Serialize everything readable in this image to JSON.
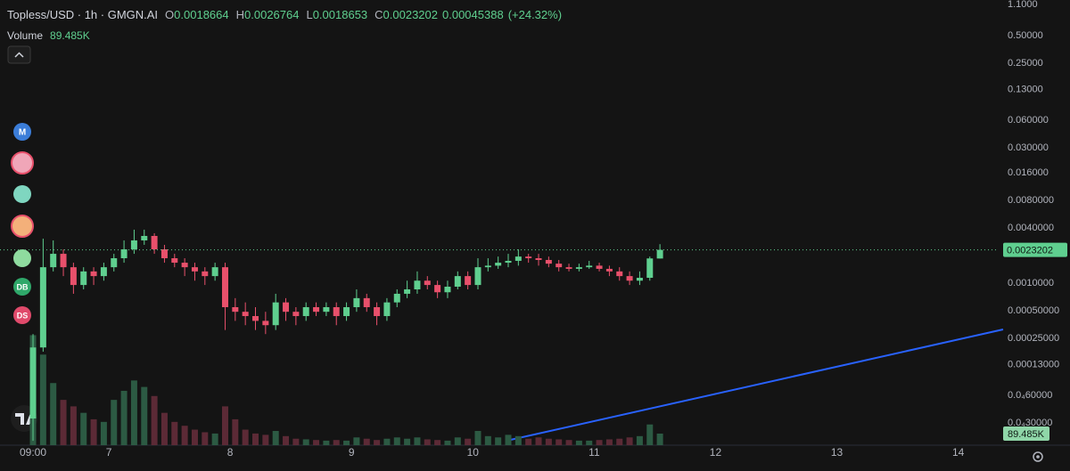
{
  "chart_data": {
    "type": "candlestick",
    "title": "Topless/USD · 1h · GMGN.AI",
    "ohlc_labels": [
      "O",
      "H",
      "L",
      "C"
    ],
    "change": 0.00045388,
    "change_label": "(+24.32%)",
    "volume_title": "Volume",
    "last_volume_label": "89.485K",
    "up_color": "#5fcf8f",
    "down_color": "#e8506b",
    "volume_up_color": "#2c5a43",
    "volume_down_color": "#5c2a36",
    "log_scale": true,
    "grid": false,
    "x": [
      0,
      2,
      4,
      6,
      8,
      10,
      12,
      14,
      16,
      18,
      20,
      22,
      24,
      26,
      28,
      30,
      32,
      34,
      36,
      38,
      40,
      42,
      44,
      46,
      48,
      50,
      52,
      54,
      56,
      58,
      60,
      62,
      64,
      66,
      68,
      70,
      72,
      74,
      76,
      78,
      80,
      82,
      84,
      86,
      88,
      90,
      92,
      94,
      96,
      98,
      100,
      102,
      104,
      106,
      108,
      110,
      112,
      114,
      116,
      118,
      120,
      122,
      124
    ],
    "open": [
      3.36e-05,
      0.0002,
      0.0015,
      0.0021,
      0.0015,
      0.00096,
      0.00135,
      0.0012,
      0.0015,
      0.00188,
      0.00235,
      0.00294,
      0.00329,
      0.00235,
      0.00188,
      0.00168,
      0.0015,
      0.00135,
      0.0012,
      0.0015,
      0.00055,
      0.00049,
      0.00044,
      0.00039,
      0.00035,
      0.00062,
      0.00049,
      0.00044,
      0.00055,
      0.00049,
      0.00055,
      0.00044,
      0.00055,
      0.00069,
      0.00055,
      0.00044,
      0.00062,
      0.00077,
      0.00086,
      0.00107,
      0.00096,
      0.0008,
      0.00092,
      0.0012,
      0.00096,
      0.0015,
      0.00156,
      0.00168,
      0.00176,
      0.00196,
      0.00188,
      0.0018,
      0.00164,
      0.0015,
      0.00144,
      0.0015,
      0.00156,
      0.00144,
      0.00135,
      0.0012,
      0.00107,
      0.00115,
      0.0018664
    ],
    "high": [
      0.00028,
      0.00307,
      0.00294,
      0.00235,
      0.00168,
      0.0015,
      0.0015,
      0.00168,
      0.0021,
      0.00294,
      0.00385,
      0.00385,
      0.00352,
      0.00263,
      0.0021,
      0.00188,
      0.00168,
      0.0015,
      0.00168,
      0.00168,
      0.00069,
      0.00062,
      0.00055,
      0.00049,
      0.00077,
      0.00069,
      0.00055,
      0.00062,
      0.00062,
      0.00062,
      0.00062,
      0.00062,
      0.00086,
      0.00077,
      0.00062,
      0.00069,
      0.00086,
      0.00107,
      0.00135,
      0.0012,
      0.00107,
      0.00107,
      0.00135,
      0.00135,
      0.00188,
      0.00188,
      0.00196,
      0.0021,
      0.00235,
      0.0021,
      0.0021,
      0.00196,
      0.0018,
      0.00164,
      0.00164,
      0.00176,
      0.00168,
      0.00156,
      0.0015,
      0.00135,
      0.00135,
      0.00196,
      0.0026764
    ],
    "low": [
      1.92e-05,
      0.00018,
      0.00135,
      0.0012,
      0.00077,
      0.00086,
      0.00096,
      0.00107,
      0.00135,
      0.00168,
      0.0021,
      0.00263,
      0.0021,
      0.00168,
      0.0015,
      0.0012,
      0.00107,
      0.00096,
      0.00107,
      0.00031,
      0.00039,
      0.00035,
      0.00031,
      0.00028,
      0.00031,
      0.00039,
      0.00035,
      0.00039,
      0.00044,
      0.00044,
      0.00035,
      0.00039,
      0.00049,
      0.00049,
      0.00035,
      0.00039,
      0.00055,
      0.00069,
      0.00077,
      0.00086,
      0.00069,
      0.00069,
      0.00086,
      0.00086,
      0.00086,
      0.00135,
      0.00144,
      0.0015,
      0.00156,
      0.00168,
      0.00156,
      0.0015,
      0.00135,
      0.00135,
      0.00135,
      0.00144,
      0.00135,
      0.0012,
      0.00107,
      0.00096,
      0.00096,
      0.00107,
      0.0018653
    ],
    "close": [
      0.0002,
      0.0015,
      0.0021,
      0.0015,
      0.00096,
      0.00135,
      0.0012,
      0.0015,
      0.00188,
      0.00235,
      0.00294,
      0.00329,
      0.00235,
      0.00188,
      0.00168,
      0.0015,
      0.00135,
      0.0012,
      0.0015,
      0.00055,
      0.00049,
      0.00044,
      0.00039,
      0.00035,
      0.00062,
      0.00049,
      0.00044,
      0.00055,
      0.00049,
      0.00055,
      0.00044,
      0.00055,
      0.00069,
      0.00055,
      0.00044,
      0.00062,
      0.00077,
      0.00086,
      0.00107,
      0.00096,
      0.0008,
      0.00092,
      0.0012,
      0.00096,
      0.0015,
      0.00156,
      0.00168,
      0.00176,
      0.00196,
      0.00188,
      0.0018,
      0.00164,
      0.0015,
      0.00144,
      0.0015,
      0.00156,
      0.00144,
      0.00135,
      0.0012,
      0.00107,
      0.00115,
      0.00187,
      0.0023202
    ],
    "volume": [
      850000,
      700000,
      480000,
      350000,
      300000,
      250000,
      200000,
      180000,
      350000,
      420000,
      500000,
      450000,
      380000,
      250000,
      180000,
      150000,
      120000,
      100000,
      90000,
      300000,
      200000,
      120000,
      90000,
      80000,
      110000,
      70000,
      50000,
      45000,
      40000,
      35000,
      40000,
      35000,
      60000,
      50000,
      40000,
      50000,
      60000,
      50000,
      60000,
      45000,
      40000,
      35000,
      60000,
      50000,
      110000,
      70000,
      60000,
      80000,
      70000,
      50000,
      60000,
      50000,
      45000,
      40000,
      35000,
      35000,
      40000,
      45000,
      50000,
      60000,
      70000,
      160000,
      89485
    ],
    "volume_lim": [
      0,
      860000
    ],
    "xlim": [
      -6.53,
      191
    ],
    "xticks": [
      {
        "value": 0,
        "label": "09:00"
      },
      {
        "value": 15,
        "label": "7"
      },
      {
        "value": 39,
        "label": "8"
      },
      {
        "value": 63,
        "label": "9"
      },
      {
        "value": 87,
        "label": "10"
      },
      {
        "value": 111,
        "label": "11"
      },
      {
        "value": 135,
        "label": "12"
      },
      {
        "value": 159,
        "label": "13"
      },
      {
        "value": 183,
        "label": "14"
      }
    ],
    "ylim": [
      1.72e-05,
      1.23
    ],
    "yticks": [
      {
        "value": 1.1,
        "label": "1.1000"
      },
      {
        "value": 0.5,
        "label": "0.50000"
      },
      {
        "value": 0.25,
        "label": "0.25000"
      },
      {
        "value": 0.13,
        "label": "0.13000"
      },
      {
        "value": 0.06,
        "label": "0.060000"
      },
      {
        "value": 0.03,
        "label": "0.030000"
      },
      {
        "value": 0.016,
        "label": "0.016000"
      },
      {
        "value": 0.008,
        "label": "0.0080000"
      },
      {
        "value": 0.004,
        "label": "0.0040000"
      },
      {
        "value": 0.001,
        "label": "0.0010000"
      },
      {
        "value": 0.0005,
        "label": "0.00050000"
      },
      {
        "value": 0.00025,
        "label": "0.00025000"
      },
      {
        "value": 0.00013,
        "label": "0.00013000"
      },
      {
        "value": 6e-05,
        "label": "0.0₄60000"
      },
      {
        "value": 3e-05,
        "label": "0.0₄30000"
      }
    ]
  },
  "sidebar_icons": [
    "M",
    "DB",
    "DS"
  ]
}
